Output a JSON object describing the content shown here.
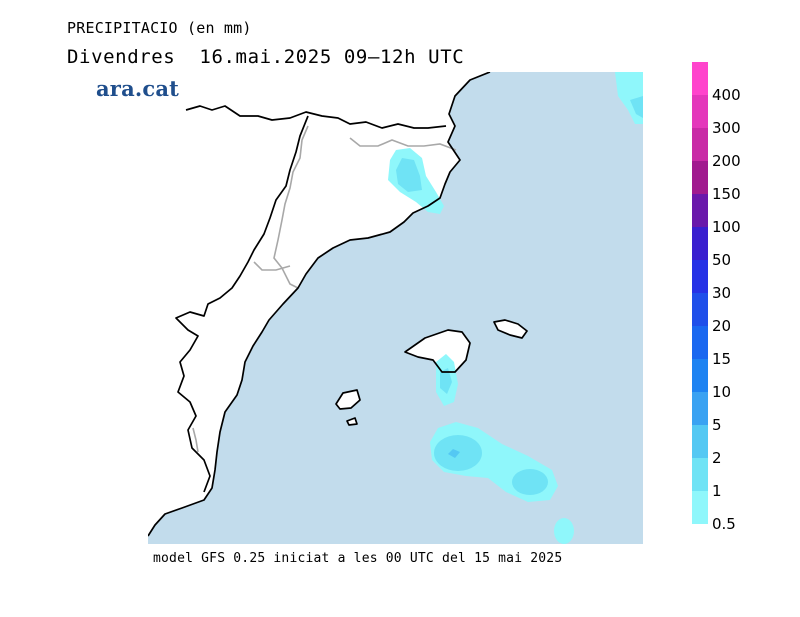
{
  "header": {
    "title": "PRECIPITACIO (en mm)",
    "subtitle": "Divendres  16.mai.2025 09–12h UTC"
  },
  "brand": {
    "name": "ara.cat"
  },
  "footer": {
    "model_info": "model GFS 0.25 iniciat a les 00 UTC del 15 mai 2025"
  },
  "legend": {
    "levels": [
      {
        "label": "400",
        "color": "#ff44cc"
      },
      {
        "label": "300",
        "color": "#e437bb"
      },
      {
        "label": "200",
        "color": "#c92aa6"
      },
      {
        "label": "150",
        "color": "#a11a8f"
      },
      {
        "label": "100",
        "color": "#6a18ab"
      },
      {
        "label": "50",
        "color": "#3a1fcf"
      },
      {
        "label": "30",
        "color": "#2632e6"
      },
      {
        "label": "20",
        "color": "#1f4fea"
      },
      {
        "label": "15",
        "color": "#1a68f0"
      },
      {
        "label": "10",
        "color": "#1e83f2"
      },
      {
        "label": "5",
        "color": "#3aa2f2"
      },
      {
        "label": "2",
        "color": "#54c8f3"
      },
      {
        "label": "1",
        "color": "#6fe3f5"
      },
      {
        "label": "0.5",
        "color": "#8ff7fb"
      }
    ]
  },
  "map": {
    "sea_color": "#c2dcec",
    "land_color": "#ffffff"
  }
}
